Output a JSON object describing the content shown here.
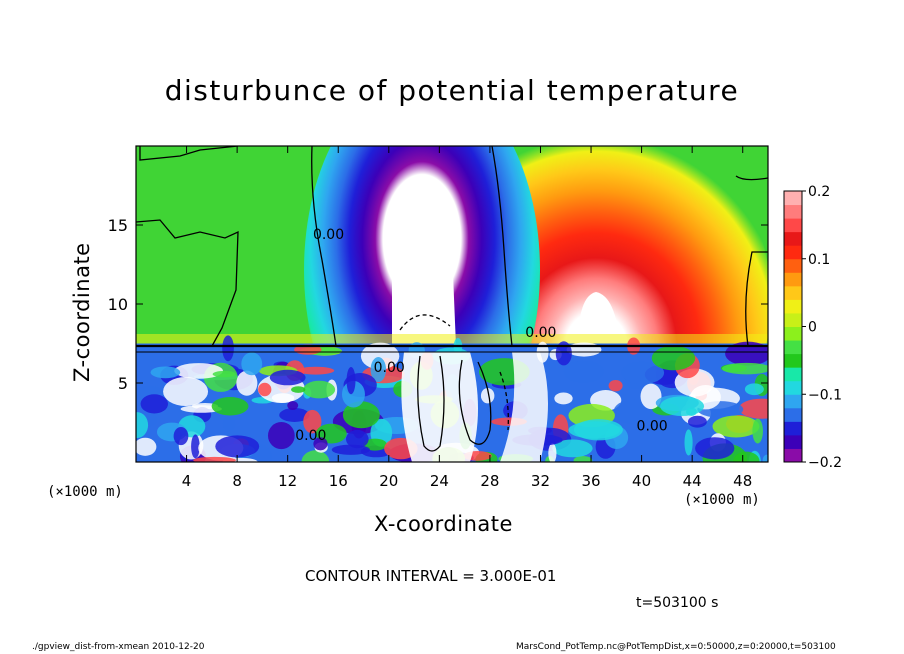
{
  "chart_data": {
    "type": "heatmap",
    "title": "disturbunce of potential temperature",
    "xlabel": "X-coordinate",
    "ylabel": "Z-coordinate",
    "x_unit_left": "(×1000 m)",
    "x_unit_right": "(×1000 m)",
    "xlim": [
      0,
      50
    ],
    "ylim": [
      0,
      20
    ],
    "x_ticks": [
      4,
      8,
      12,
      16,
      20,
      24,
      28,
      32,
      36,
      40,
      44,
      48
    ],
    "y_ticks": [
      5,
      10,
      15
    ],
    "colorbar": {
      "range": [
        -0.2,
        0.2
      ],
      "tick_labels": [
        "0.2",
        "0.1",
        "0",
        "−0.1",
        "−0.2"
      ],
      "tick_values": [
        0.2,
        0.1,
        0,
        -0.1,
        -0.2
      ],
      "colors": [
        "#8a0ca8",
        "#3c00b8",
        "#1f1fd8",
        "#2c6ee8",
        "#2fa6f0",
        "#22d8e0",
        "#18e8a8",
        "#22c81c",
        "#44e044",
        "#8cf01c",
        "#c8f018",
        "#f0f016",
        "#ffc818",
        "#ff9a10",
        "#ff6010",
        "#ff2a10",
        "#e81818",
        "#ff4848",
        "#ff7c7c",
        "#ffb0b0"
      ]
    },
    "contour_labels": [
      "0.00",
      "0.00",
      "0.00",
      "0.00",
      "0.00"
    ],
    "regions": [
      {
        "name": "background",
        "value": 0.01
      },
      {
        "name": "cold plume",
        "x_center": 22.5,
        "value": -0.2
      },
      {
        "name": "warm plume",
        "x_center": 36,
        "value": 0.2
      },
      {
        "name": "turbulent lower layer",
        "z_range": [
          0,
          7.5
        ],
        "value": "mixed"
      }
    ]
  },
  "footer": {
    "contour_interval": "CONTOUR INTERVAL = 3.000E-01",
    "time": "t=503100 s",
    "left_note": "./gpview_dist-from-xmean  2010-12-20",
    "right_note": "MarsCond_PotTemp.nc@PotTempDist,x=0:50000,z=0:20000,t=503100"
  }
}
